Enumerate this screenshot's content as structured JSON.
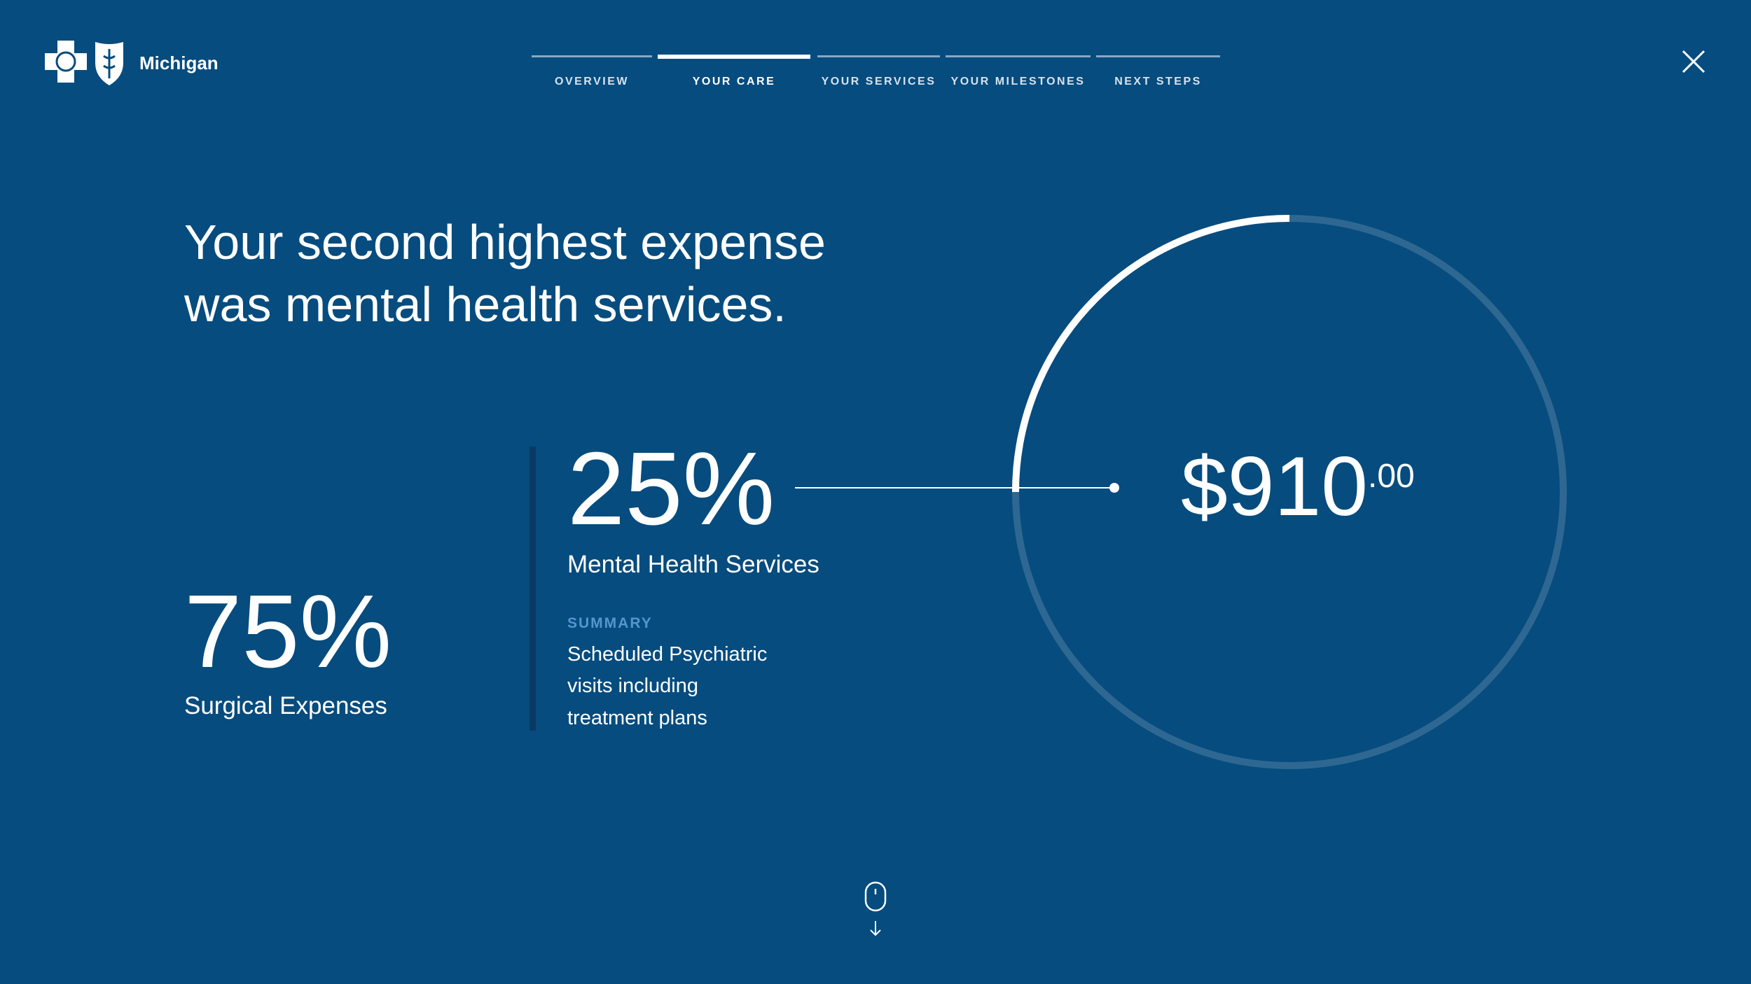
{
  "header": {
    "brand": "Michigan"
  },
  "nav": [
    "OVERVIEW",
    "YOUR CARE",
    "YOUR SERVICES",
    "YOUR MILESTONES",
    "NEXT STEPS"
  ],
  "active_nav": 1,
  "headline": [
    "Your second highest expense",
    "was mental health services."
  ],
  "stats": {
    "mental": {
      "value": 25,
      "label": "25%",
      "name": "Mental Health Services"
    },
    "surgical": {
      "value": 75,
      "label": "75%",
      "name": "Surgical Expenses"
    }
  },
  "summary": {
    "title": "SUMMARY",
    "lines": [
      "Scheduled Psychiatric",
      "visits including",
      "treatment plans"
    ]
  },
  "amount": {
    "main": "$910",
    "cents": ".00"
  }
}
